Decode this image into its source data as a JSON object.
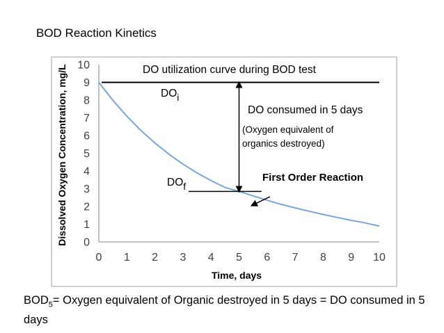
{
  "slide": {
    "title": "BOD Reaction Kinetics",
    "footer_prefix": "BOD",
    "footer_sub": "5",
    "footer_rest": "= Oxygen equivalent of Organic destroyed in 5 days = DO consumed in 5 days"
  },
  "chart_data": {
    "type": "line",
    "title": "",
    "xlabel": "Time, days",
    "ylabel": "Dissolved Oxygen Concentration, mg/L",
    "xlim": [
      0,
      10
    ],
    "ylim": [
      0,
      10
    ],
    "x_ticks": [
      "0",
      "1",
      "2",
      "3",
      "4",
      "5",
      "6",
      "7",
      "8",
      "9",
      "10"
    ],
    "y_ticks": [
      "0",
      "1",
      "2",
      "3",
      "4",
      "5",
      "6",
      "7",
      "8",
      "9",
      "10"
    ],
    "grid": false,
    "series": [
      {
        "name": "DO utilization curve",
        "x": [
          0,
          0.5,
          1,
          1.5,
          2,
          2.5,
          3,
          3.5,
          4,
          4.5,
          5,
          5.5,
          6,
          6.5,
          7,
          7.5,
          8,
          8.5,
          9,
          9.5,
          10
        ],
        "y": [
          9.0,
          7.99,
          7.09,
          6.29,
          5.58,
          4.95,
          4.39,
          3.9,
          3.46,
          3.07,
          2.85,
          2.6,
          2.35,
          2.12,
          1.92,
          1.73,
          1.55,
          1.38,
          1.22,
          1.07,
          0.9
        ],
        "color": "#7ba7d6"
      }
    ],
    "reference_line": {
      "y": 9,
      "x_start": 0.1,
      "x_end": 10
    },
    "do_f_line": {
      "y": 2.85,
      "x_start": 3.2,
      "x_end": 5.8
    },
    "consumed_arrow": {
      "x": 5,
      "y_from": 9,
      "y_to": 2.85
    },
    "reaction_pointer": {
      "from_x": 6.1,
      "from_y": 2.55,
      "to_x": 5.45,
      "to_y": 2.05
    },
    "annotations": {
      "curve_title": "DO utilization curve during BOD test",
      "do_i_base": "DO",
      "do_i_sub": "i",
      "do_f_base": "DO",
      "do_f_sub": "f",
      "consumed": "DO consumed in 5 days",
      "paren_line1": "(Oxygen equivalent of",
      "paren_line2": "organics destroyed)",
      "reaction": "First Order Reaction"
    }
  }
}
